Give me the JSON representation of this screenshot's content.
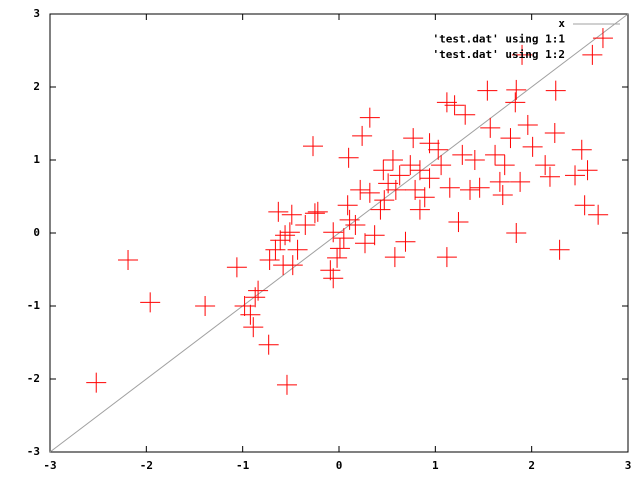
{
  "chart_data": {
    "type": "scatter",
    "xlim": [
      -3,
      3
    ],
    "ylim": [
      -3,
      3
    ],
    "xticks": [
      -3,
      -2,
      -1,
      0,
      1,
      2,
      3
    ],
    "yticks": [
      -3,
      -2,
      -1,
      0,
      1,
      2,
      3
    ],
    "legend": "top-right",
    "x": [
      -2.52,
      -2.19,
      -1.96,
      -1.39,
      -1.06,
      -0.98,
      -0.92,
      -0.87,
      -0.84,
      -0.89,
      -0.73,
      -0.54,
      -0.63,
      -0.49,
      -0.27,
      -0.22,
      -0.25,
      -0.72,
      -0.66,
      -0.61,
      -0.56,
      -0.51,
      -0.48,
      -0.43,
      -0.35,
      -0.58,
      -0.09,
      -0.06,
      -0.02,
      0.01,
      -0.06,
      0.05,
      0.09,
      0.11,
      0.1,
      0.17,
      0.24,
      0.32,
      0.27,
      0.32,
      0.37,
      0.43,
      0.47,
      0.46,
      0.51,
      0.56,
      0.59,
      0.63,
      0.58,
      0.69,
      0.74,
      0.77,
      0.79,
      0.84,
      0.89,
      0.94,
      1.03,
      1.06,
      1.12,
      1.15,
      1.12,
      1.2,
      1.24,
      1.28,
      1.31,
      1.36,
      1.41,
      1.46,
      1.54,
      1.57,
      1.62,
      1.67,
      1.7,
      1.72,
      1.78,
      1.84,
      1.88,
      1.9,
      1.84,
      1.83,
      1.96,
      2.01,
      2.14,
      2.19,
      2.25,
      2.24,
      2.29,
      2.45,
      2.52,
      2.55,
      2.58,
      2.63,
      2.69,
      2.74,
      0.94,
      0.22,
      0.84
    ],
    "series": [
      {
        "name": "x",
        "color": "#a0a0a0"
      },
      {
        "name": "'test.dat' using 1:1"
      },
      {
        "name": "'test.dat' using 1:2",
        "color": "#ff0000",
        "values": [
          -2.05,
          -0.37,
          -0.95,
          -1.0,
          -0.47,
          -1.0,
          -1.12,
          -0.88,
          -0.79,
          -1.29,
          -1.53,
          -2.08,
          0.29,
          0.25,
          1.19,
          0.29,
          0.27,
          -0.37,
          -0.23,
          -0.1,
          -0.03,
          0.01,
          -0.44,
          -0.23,
          0.11,
          -0.44,
          -0.51,
          -0.62,
          -0.34,
          -0.21,
          0.01,
          -0.07,
          0.38,
          0.18,
          1.03,
          0.11,
          1.33,
          1.58,
          -0.14,
          0.55,
          -0.03,
          0.32,
          0.45,
          0.86,
          0.68,
          1.0,
          0.59,
          0.79,
          -0.33,
          -0.12,
          0.93,
          1.3,
          0.59,
          0.86,
          0.49,
          1.23,
          1.14,
          0.93,
          1.79,
          0.62,
          -0.33,
          1.75,
          0.15,
          1.07,
          1.62,
          0.59,
          1.0,
          0.62,
          1.95,
          1.44,
          1.07,
          0.7,
          0.52,
          0.93,
          1.3,
          0.0,
          0.7,
          2.44,
          1.96,
          1.79,
          1.48,
          1.18,
          0.93,
          0.77,
          1.95,
          1.37,
          -0.23,
          0.79,
          1.14,
          0.38,
          0.86,
          2.44,
          0.25,
          2.67,
          0.75,
          0.59,
          0.32
        ]
      }
    ]
  }
}
